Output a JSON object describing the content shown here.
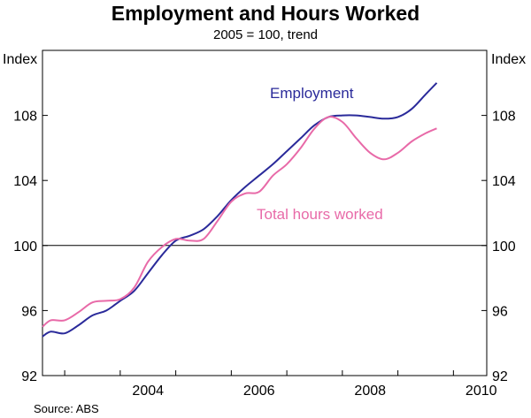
{
  "chart_data": {
    "type": "line",
    "title": "Employment and Hours Worked",
    "subtitle": "2005 = 100, trend",
    "ylabel_left": "Index",
    "ylabel_right": "Index",
    "ylim": [
      92,
      112
    ],
    "yticks": [
      92,
      96,
      100,
      104,
      108
    ],
    "reference_line": 100,
    "xlim": [
      2002.6,
      2010.6
    ],
    "xtick_labels": [
      "2004",
      "2006",
      "2008",
      "2010"
    ],
    "source": "Source: ABS",
    "grid": false,
    "series": [
      {
        "name": "Employment",
        "color": "#2a2a9a",
        "points": [
          [
            2002.6,
            94.4
          ],
          [
            2002.75,
            94.7
          ],
          [
            2003.0,
            94.6
          ],
          [
            2003.25,
            95.1
          ],
          [
            2003.5,
            95.7
          ],
          [
            2003.75,
            96.0
          ],
          [
            2004.0,
            96.6
          ],
          [
            2004.25,
            97.2
          ],
          [
            2004.5,
            98.3
          ],
          [
            2004.75,
            99.4
          ],
          [
            2005.0,
            100.3
          ],
          [
            2005.25,
            100.6
          ],
          [
            2005.5,
            101.0
          ],
          [
            2005.75,
            101.8
          ],
          [
            2006.0,
            102.8
          ],
          [
            2006.25,
            103.6
          ],
          [
            2006.5,
            104.3
          ],
          [
            2006.75,
            105.0
          ],
          [
            2007.0,
            105.8
          ],
          [
            2007.25,
            106.6
          ],
          [
            2007.5,
            107.4
          ],
          [
            2007.75,
            107.9
          ],
          [
            2008.0,
            108.0
          ],
          [
            2008.25,
            108.0
          ],
          [
            2008.5,
            107.9
          ],
          [
            2008.75,
            107.8
          ],
          [
            2009.0,
            107.9
          ],
          [
            2009.25,
            108.4
          ],
          [
            2009.5,
            109.3
          ],
          [
            2009.7,
            110.0
          ]
        ]
      },
      {
        "name": "Total hours worked",
        "color": "#e86aa8",
        "points": [
          [
            2002.6,
            95.0
          ],
          [
            2002.75,
            95.4
          ],
          [
            2003.0,
            95.4
          ],
          [
            2003.25,
            95.9
          ],
          [
            2003.5,
            96.5
          ],
          [
            2003.75,
            96.6
          ],
          [
            2004.0,
            96.7
          ],
          [
            2004.25,
            97.4
          ],
          [
            2004.5,
            99.0
          ],
          [
            2004.75,
            99.9
          ],
          [
            2005.0,
            100.4
          ],
          [
            2005.25,
            100.3
          ],
          [
            2005.5,
            100.4
          ],
          [
            2005.75,
            101.5
          ],
          [
            2006.0,
            102.7
          ],
          [
            2006.25,
            103.2
          ],
          [
            2006.5,
            103.3
          ],
          [
            2006.75,
            104.3
          ],
          [
            2007.0,
            105.0
          ],
          [
            2007.25,
            106.0
          ],
          [
            2007.5,
            107.2
          ],
          [
            2007.75,
            107.9
          ],
          [
            2008.0,
            107.6
          ],
          [
            2008.25,
            106.6
          ],
          [
            2008.5,
            105.7
          ],
          [
            2008.75,
            105.3
          ],
          [
            2009.0,
            105.7
          ],
          [
            2009.25,
            106.4
          ],
          [
            2009.5,
            106.9
          ],
          [
            2009.7,
            107.2
          ]
        ]
      }
    ],
    "annotations": [
      {
        "text": "Employment",
        "series": 0
      },
      {
        "text": "Total hours worked",
        "series": 1
      }
    ]
  }
}
